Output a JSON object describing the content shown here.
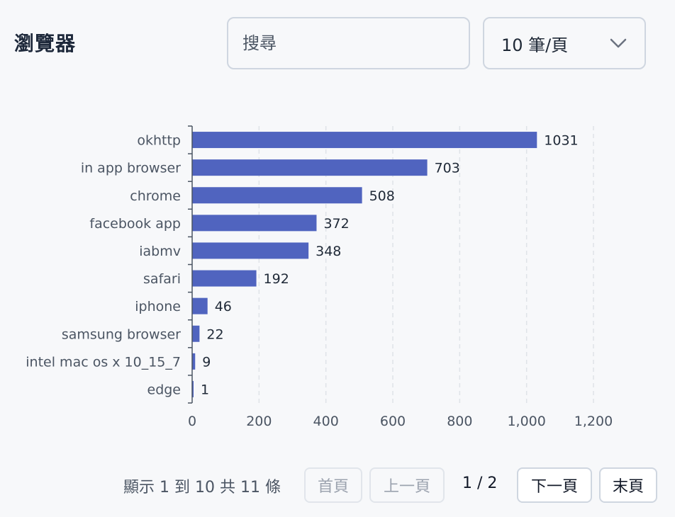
{
  "header": {
    "title": "瀏覽器",
    "search_placeholder": "搜尋",
    "page_size_label": "10 筆/頁"
  },
  "chart_data": {
    "type": "bar",
    "orientation": "horizontal",
    "categories": [
      "okhttp",
      "in app browser",
      "chrome",
      "facebook app",
      "iabmv",
      "safari",
      "iphone",
      "samsung browser",
      "intel mac os x 10_15_7",
      "edge"
    ],
    "values": [
      1031,
      703,
      508,
      372,
      348,
      192,
      46,
      22,
      9,
      1
    ],
    "xlim": [
      0,
      1200
    ],
    "x_ticks": [
      0,
      200,
      400,
      600,
      800,
      1000,
      1200
    ],
    "x_tick_labels": [
      "0",
      "200",
      "400",
      "600",
      "800",
      "1,000",
      "1,200"
    ],
    "bar_color": "#5064bf",
    "grid": true,
    "title": "",
    "xlabel": "",
    "ylabel": ""
  },
  "pagination": {
    "info": "顯示 1 到 10 共 11 條",
    "first": "首頁",
    "prev": "上一頁",
    "page": "1 / 2",
    "next": "下一頁",
    "last": "末頁"
  }
}
